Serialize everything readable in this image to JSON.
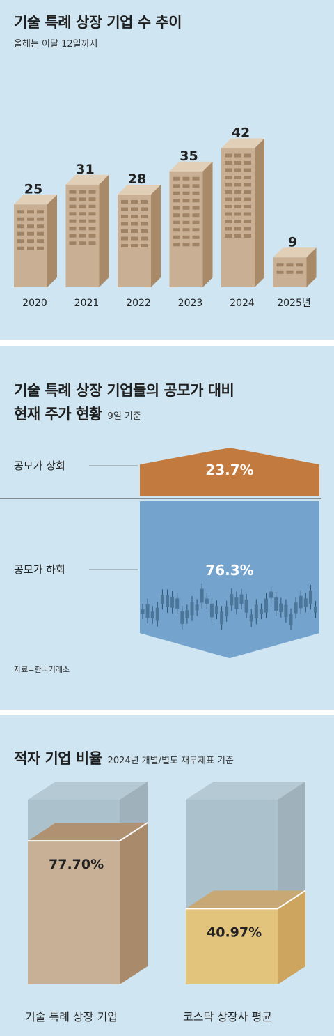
{
  "panel1": {
    "title": "기술 특례 상장 기업 수 추이",
    "subtitle": "올해는 이달 12일까지"
  },
  "panel2": {
    "title_line1": "기술 특례 상장 기업들의 공모가 대비",
    "title_line2": "현재 주가 현황",
    "note": "9일 기준",
    "source": "자료=한국거래소"
  },
  "panel3": {
    "title": "적자 기업 비율",
    "note": "2024년 개별/별도 재무제표 기준"
  },
  "colors": {
    "background": "#cfe5f1",
    "building_front": "#c9b094",
    "building_side": "#a88968",
    "building_top": "#e2cfb7",
    "above_offer": "#c27a3e",
    "below_offer": "#74a4cd",
    "tech_cube": "#c7b095",
    "kosdaq_cube": "#e3c47d"
  },
  "chart_data": [
    {
      "type": "bar",
      "title": "기술 특례 상장 기업 수 추이",
      "categories": [
        "2020",
        "2021",
        "2022",
        "2023",
        "2024",
        "2025년"
      ],
      "values": [
        25,
        31,
        28,
        35,
        42,
        9
      ]
    },
    {
      "type": "bar",
      "title": "기술 특례 상장 기업들의 공모가 대비 현재 주가 현황",
      "categories": [
        "공모가 상회",
        "공모가 하회"
      ],
      "values": [
        23.7,
        76.3
      ],
      "value_labels": [
        "23.7%",
        "76.3%"
      ]
    },
    {
      "type": "bar",
      "title": "적자 기업 비율",
      "categories": [
        "기술 특례 상장 기업",
        "코스닥 상장사 평균"
      ],
      "values": [
        77.7,
        40.97
      ],
      "value_labels": [
        "77.70%",
        "40.97%"
      ]
    }
  ]
}
